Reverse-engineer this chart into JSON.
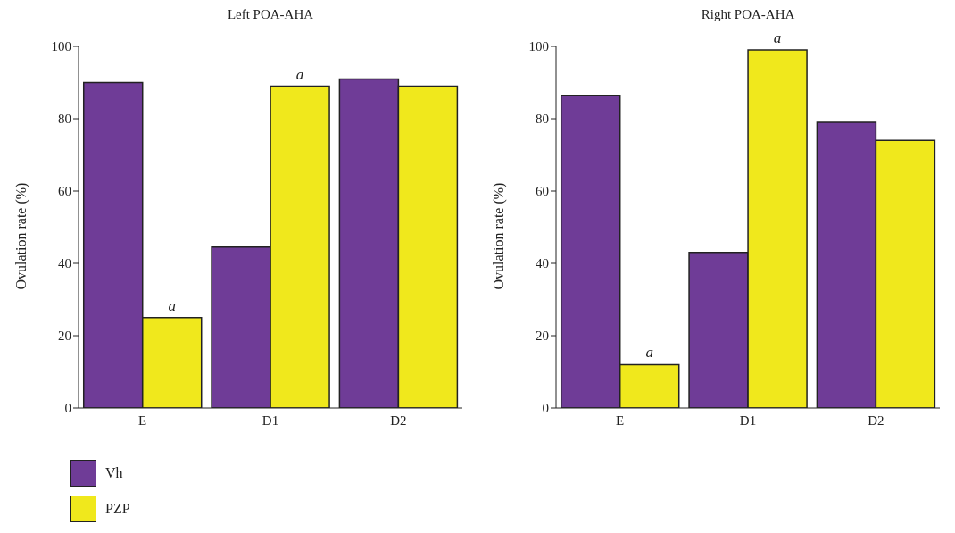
{
  "chart_data": [
    {
      "type": "bar",
      "title": "Left POA-AHA",
      "ylabel": "Ovulation rate (%)",
      "categories": [
        "E",
        "D1",
        "D2"
      ],
      "series": [
        {
          "name": "Vh",
          "color": "#6f3c97",
          "values": [
            90,
            44.5,
            91
          ]
        },
        {
          "name": "PZP",
          "color": "#f0e81c",
          "values": [
            25,
            89,
            89
          ]
        }
      ],
      "ylim": [
        0,
        100
      ],
      "yticks": [
        0,
        20,
        40,
        60,
        80,
        100
      ],
      "grid": false,
      "legend": "bottom left",
      "annotations": [
        {
          "text": "a",
          "x": "E",
          "y": 25
        },
        {
          "text": "a",
          "x": "D1",
          "y": 89
        }
      ]
    },
    {
      "type": "bar",
      "title": "Right POA-AHA",
      "ylabel": "Ovulation rate (%)",
      "categories": [
        "E",
        "D1",
        "D2"
      ],
      "series": [
        {
          "color": "#6f3c97",
          "values": [
            86.5,
            43,
            79
          ]
        },
        {
          "color": "#f0e81c",
          "values": [
            12,
            99,
            74
          ]
        }
      ],
      "ylim": [
        0,
        100
      ],
      "yticks": [
        0,
        20,
        40,
        60,
        80,
        100
      ],
      "grid": false,
      "legend": false,
      "annotations": [
        {
          "text": "a",
          "x": "E",
          "y": 12
        },
        {
          "text": "a",
          "x": "D1",
          "y": 99
        }
      ]
    }
  ]
}
